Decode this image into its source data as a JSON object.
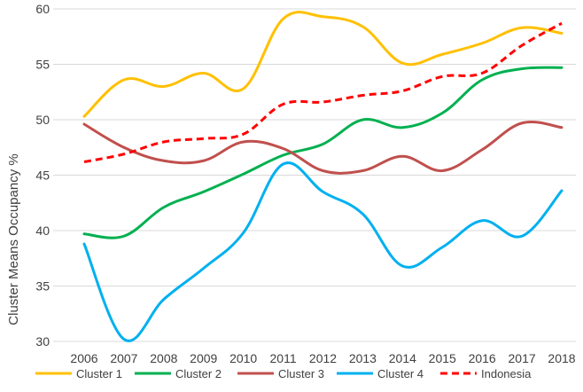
{
  "chart_data": {
    "type": "line",
    "title": "",
    "xlabel": "",
    "ylabel": "Cluster Means  Occupancy %",
    "ylim": [
      30,
      60
    ],
    "yticks": [
      30,
      35,
      40,
      45,
      50,
      55,
      60
    ],
    "grid": "horizontal",
    "legend_position": "bottom",
    "categories": [
      "2006",
      "2007",
      "2008",
      "2009",
      "2010",
      "2011",
      "2012",
      "2013",
      "2014",
      "2015",
      "2016",
      "2017",
      "2018"
    ],
    "series": [
      {
        "name": "Cluster 1",
        "color": "#ffc000",
        "dash": "solid",
        "values": [
          50.3,
          53.6,
          53.0,
          54.2,
          52.8,
          59.1,
          59.3,
          58.4,
          55.1,
          55.9,
          56.9,
          58.3,
          57.8
        ]
      },
      {
        "name": "Cluster 2",
        "color": "#00b050",
        "dash": "solid",
        "values": [
          39.7,
          39.5,
          42.1,
          43.5,
          45.1,
          46.8,
          47.8,
          50.0,
          49.3,
          50.6,
          53.6,
          54.6,
          54.7
        ]
      },
      {
        "name": "Cluster 3",
        "color": "#c0504d",
        "dash": "solid",
        "values": [
          49.6,
          47.5,
          46.3,
          46.3,
          48.0,
          47.4,
          45.4,
          45.4,
          46.7,
          45.4,
          47.3,
          49.7,
          49.3
        ]
      },
      {
        "name": "Cluster 4",
        "color": "#00b0f0",
        "dash": "solid",
        "values": [
          38.8,
          30.2,
          33.8,
          36.6,
          39.8,
          46.0,
          43.5,
          41.5,
          36.8,
          38.5,
          40.9,
          39.5,
          43.6
        ]
      },
      {
        "name": "Indonesia",
        "color": "#ff0000",
        "dash": "dashed",
        "values": [
          46.2,
          46.9,
          48.0,
          48.3,
          48.7,
          51.4,
          51.6,
          52.2,
          52.6,
          53.9,
          54.2,
          56.7,
          58.7
        ]
      }
    ]
  }
}
